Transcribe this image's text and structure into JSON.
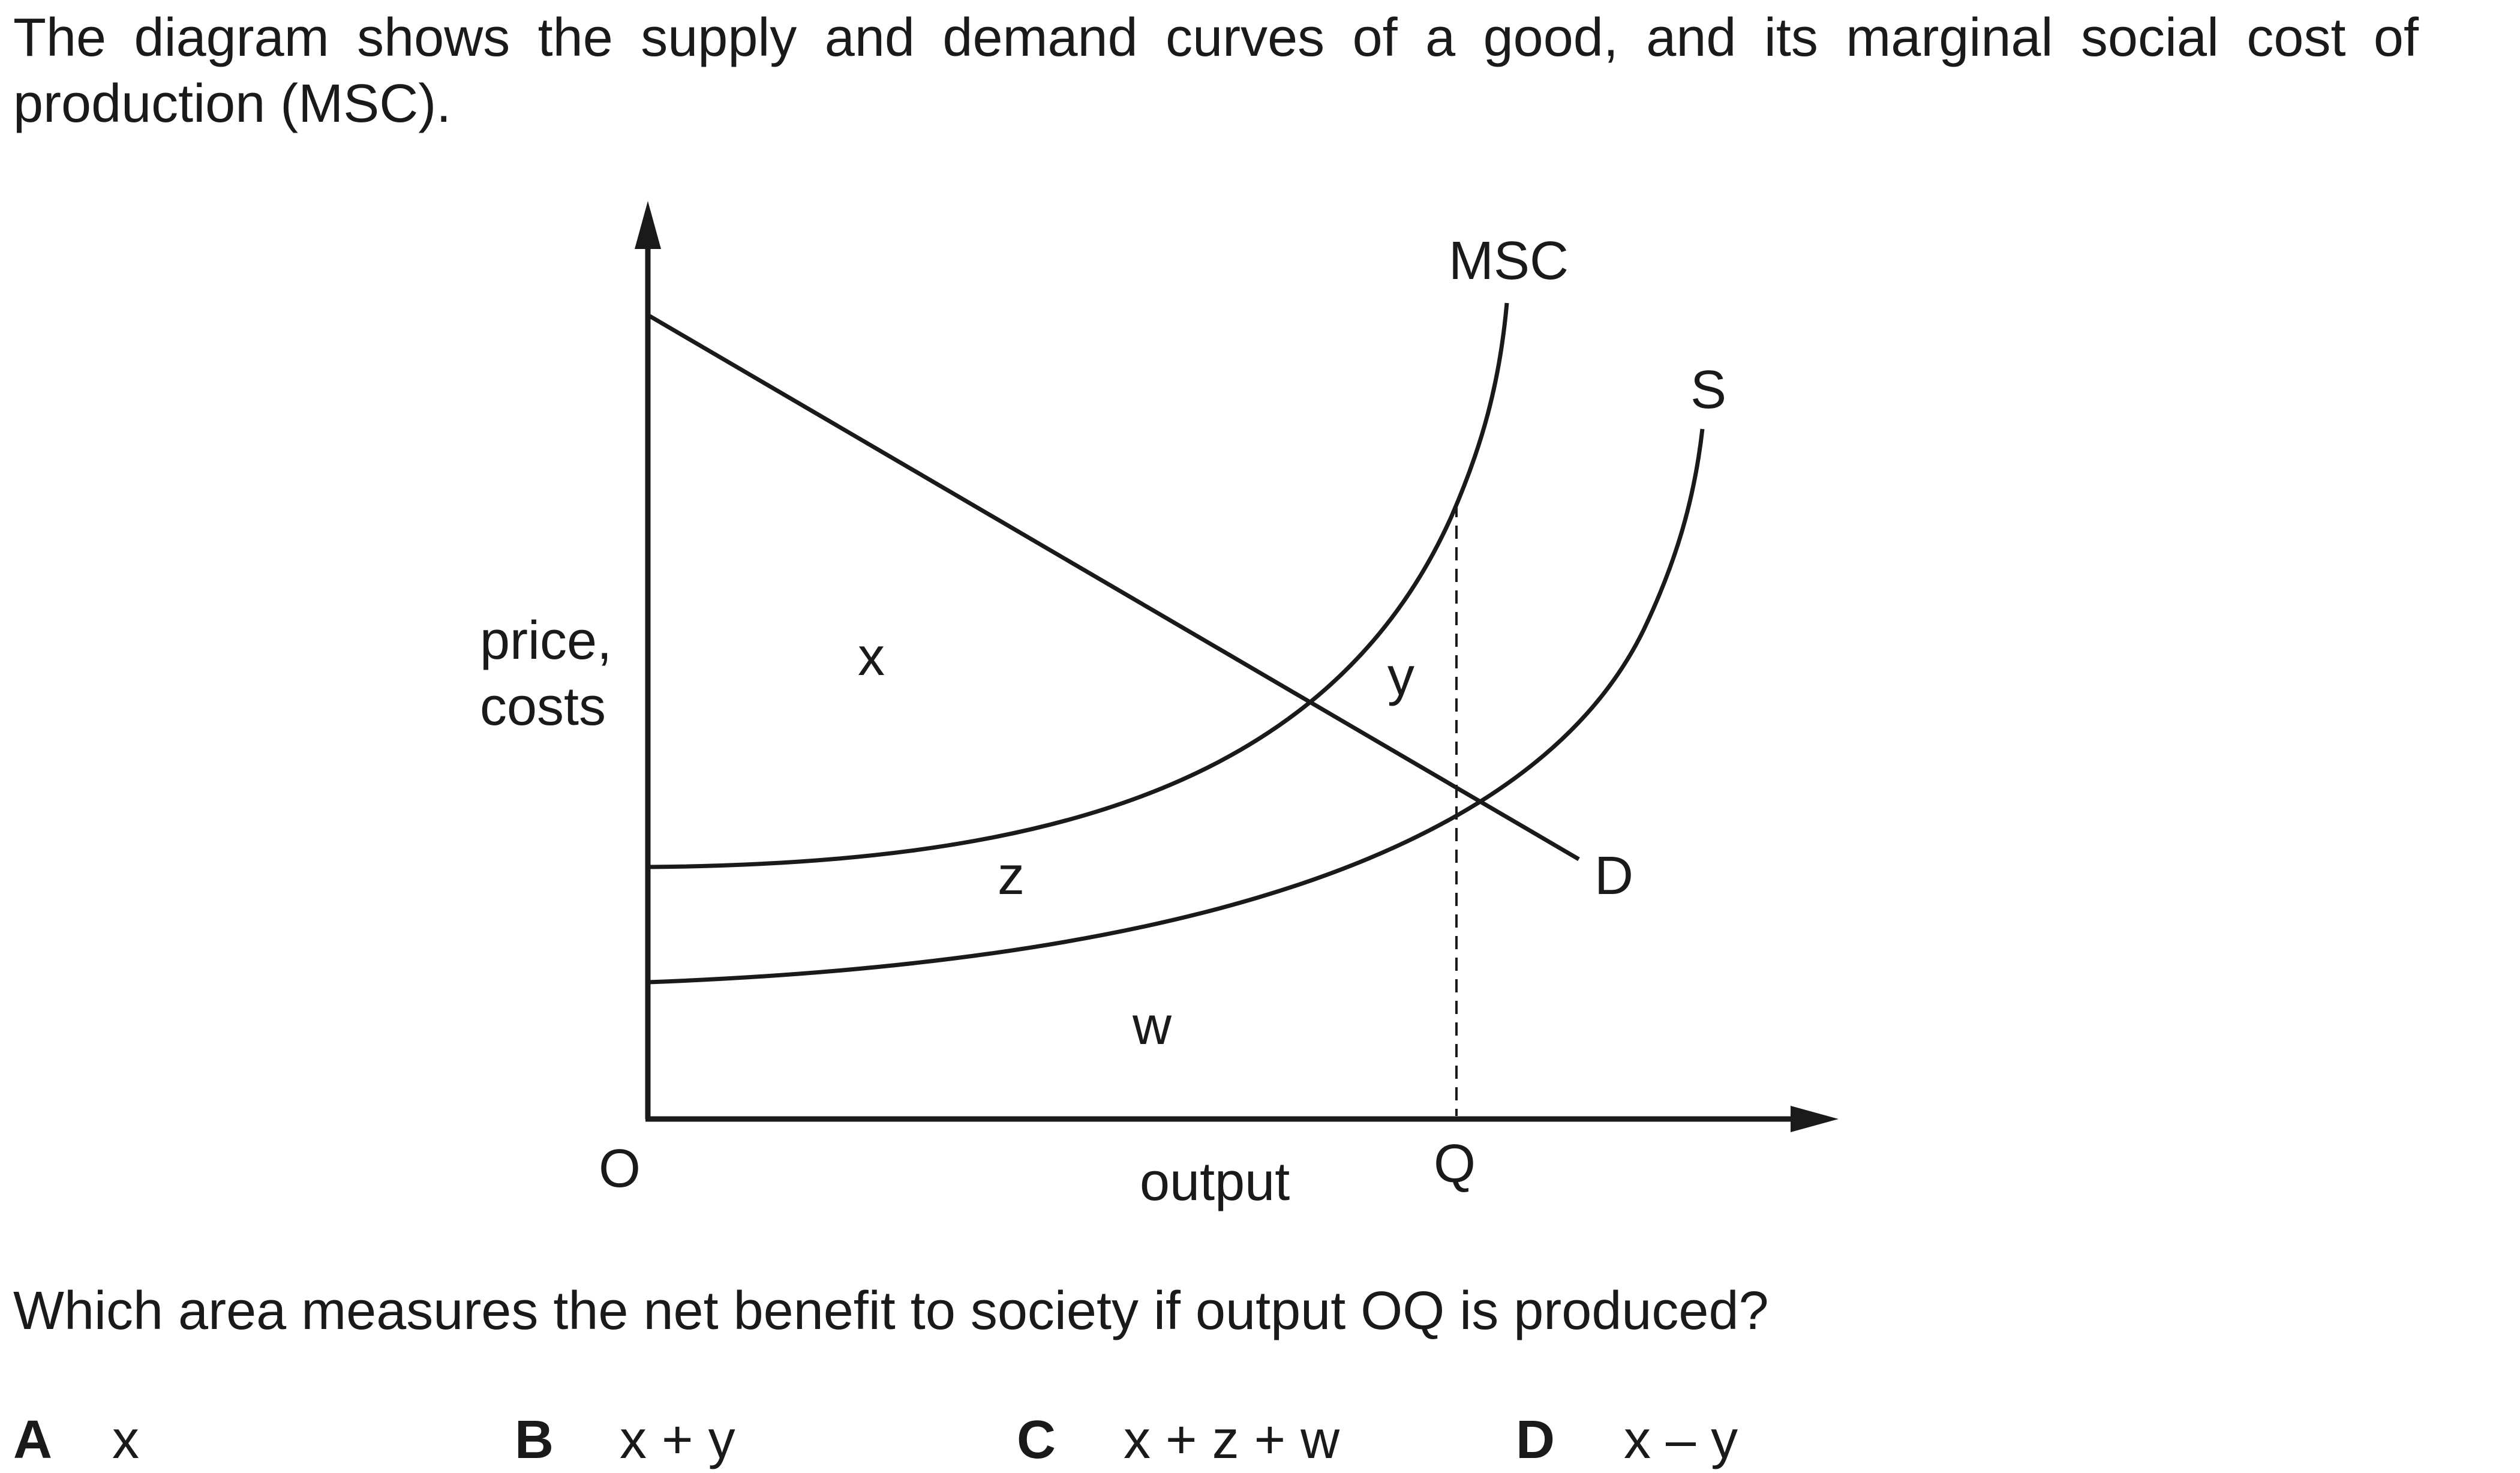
{
  "question": {
    "intro": "The diagram shows the supply and demand curves of a good, and its marginal social cost of production (MSC).",
    "prompt": "Which area measures the net benefit to society if output OQ is produced?"
  },
  "diagram": {
    "y_axis_label_line1": "price,",
    "y_axis_label_line2": "costs",
    "x_axis_label": "output",
    "origin_label": "O",
    "q_label": "Q",
    "curves": {
      "msc": "MSC",
      "supply": "S",
      "demand": "D"
    },
    "areas": {
      "x": "x",
      "y": "y",
      "z": "z",
      "w": "w"
    }
  },
  "options": [
    {
      "letter": "A",
      "text": "x"
    },
    {
      "letter": "B",
      "text": "x + y"
    },
    {
      "letter": "C",
      "text": "x + z + w"
    },
    {
      "letter": "D",
      "text": "x – y"
    }
  ]
}
